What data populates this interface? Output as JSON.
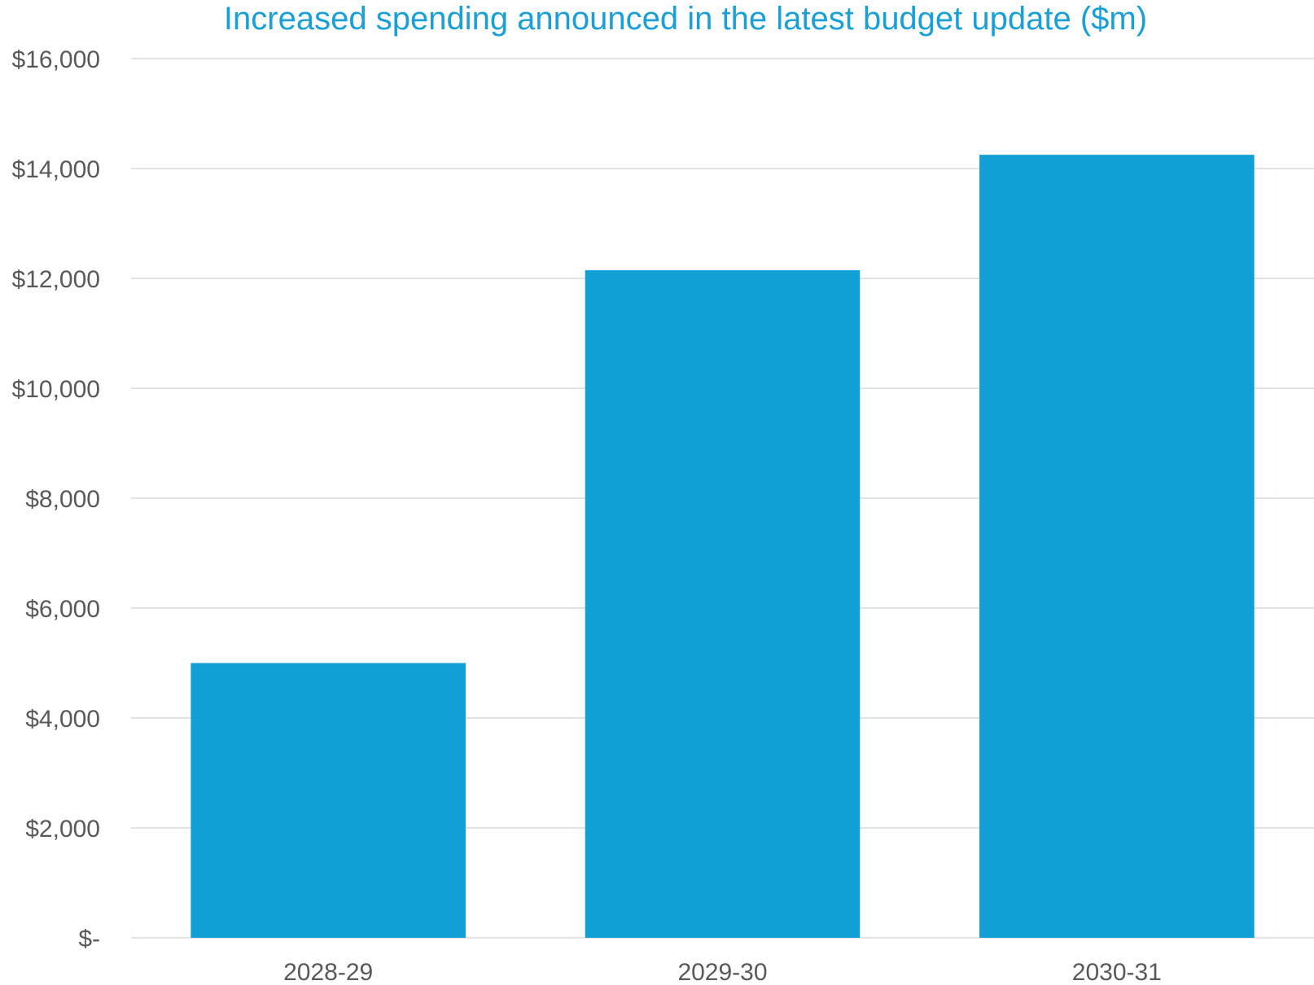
{
  "chart_data": {
    "type": "bar",
    "title": "Increased spending announced in the latest budget update ($m)",
    "xlabel": "",
    "ylabel": "",
    "categories": [
      "2028-29",
      "2029-30",
      "2030-31"
    ],
    "values": [
      5000,
      12150,
      14250
    ],
    "ylim": [
      0,
      16000
    ],
    "yticks": [
      0,
      2000,
      4000,
      6000,
      8000,
      10000,
      12000,
      14000,
      16000
    ],
    "ytick_labels": [
      "$-",
      "$2,000",
      "$4,000",
      "$6,000",
      "$8,000",
      "$10,000",
      "$12,000",
      "$14,000",
      "$16,000"
    ],
    "grid": true,
    "legend": "none",
    "colors": {
      "bar": "#119fd6",
      "title": "#1a9fd6",
      "grid": "#e3e3e3",
      "text": "#595959"
    }
  }
}
